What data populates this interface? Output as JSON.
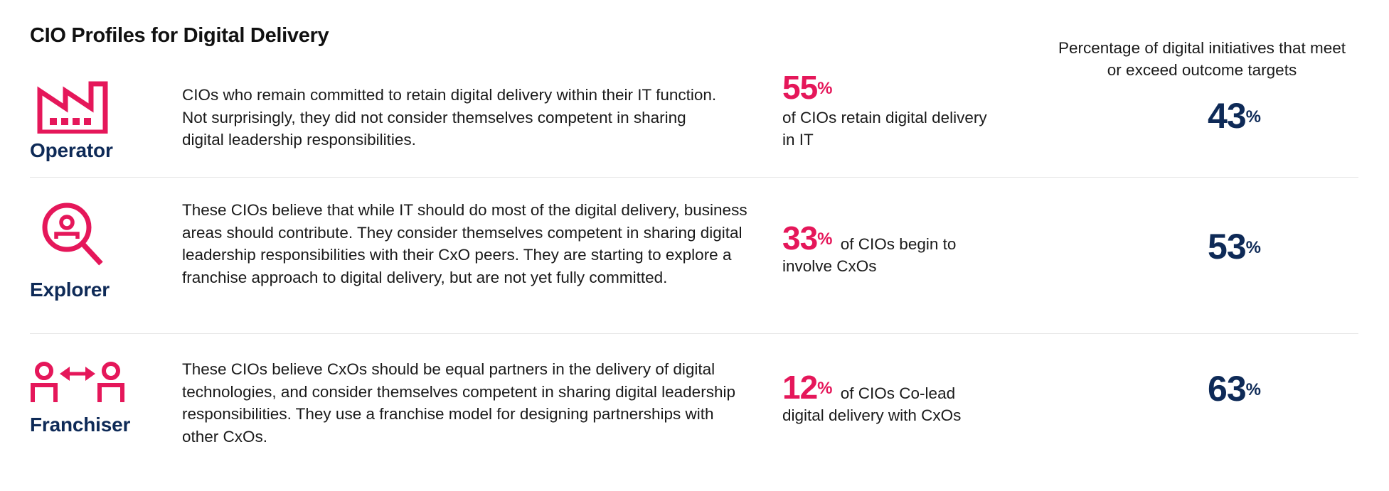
{
  "title": "CIO Profiles for Digital Delivery",
  "column_header": "Percentage of digital initiatives that meet or exceed outcome targets",
  "colors": {
    "accent_pink": "#e5175a",
    "navy": "#0e2a57",
    "divider": "#e6e6e6"
  },
  "profiles": [
    {
      "name": "Operator",
      "icon": "factory-icon",
      "description": "CIOs who remain committed to retain digital delivery within their IT function. Not surprisingly, they did not consider themselves competent in sharing digital leadership responsibilities.",
      "stat_value": "55",
      "stat_unit": "%",
      "stat_text": "of CIOs retain digital delivery in IT",
      "metric_value": "43",
      "metric_unit": "%"
    },
    {
      "name": "Explorer",
      "icon": "person-search-icon",
      "description": "These CIOs believe that while IT should do most of the digital delivery, business areas should contribute. They consider themselves competent in sharing digital leadership responsibilities with their CxO peers. They are starting to explore a franchise approach to digital delivery, but are not yet fully committed.",
      "stat_value": "33",
      "stat_unit": "%",
      "stat_text": "of CIOs begin to involve CxOs",
      "metric_value": "53",
      "metric_unit": "%"
    },
    {
      "name": "Franchiser",
      "icon": "people-exchange-icon",
      "description": "These CIOs believe CxOs should be equal partners in the delivery of digital technologies, and consider themselves competent in sharing digital leadership responsibilities. They use a franchise model for designing partnerships with other CxOs.",
      "stat_value": "12",
      "stat_unit": "%",
      "stat_text": "of CIOs Co-lead digital delivery with CxOs",
      "metric_value": "63",
      "metric_unit": "%"
    }
  ]
}
